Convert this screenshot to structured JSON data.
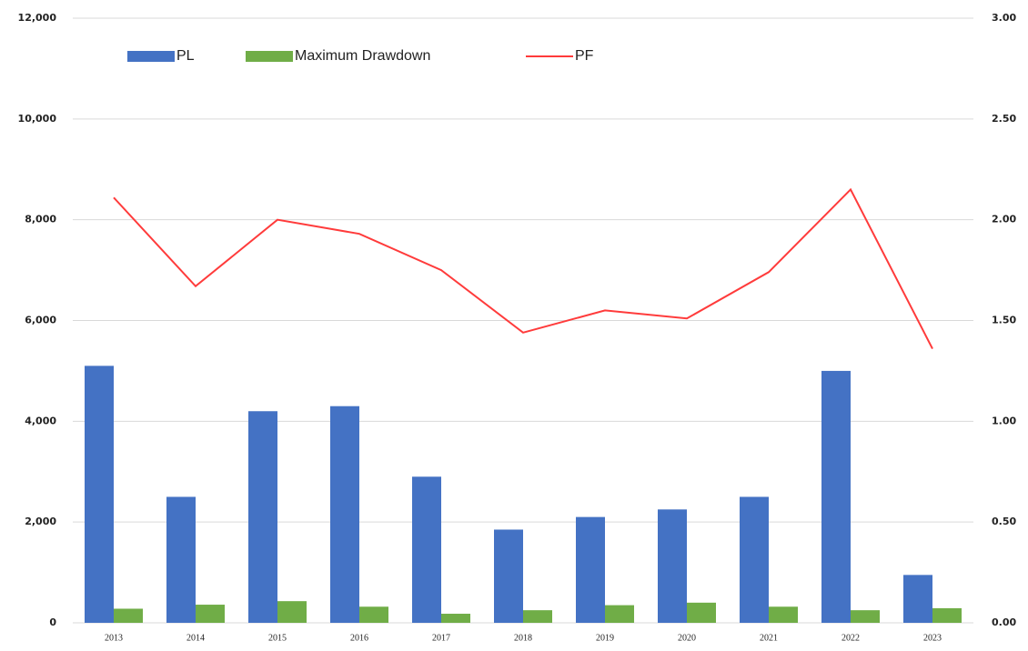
{
  "chart_data": {
    "type": "bar-line",
    "categories": [
      "2013",
      "2014",
      "2015",
      "2016",
      "2017",
      "2018",
      "2019",
      "2020",
      "2021",
      "2022",
      "2023"
    ],
    "series": [
      {
        "name": "PL",
        "type": "bar",
        "color": "#4472c4",
        "values": [
          5100,
          2500,
          4200,
          4300,
          2900,
          1850,
          2100,
          2250,
          2500,
          5000,
          950
        ]
      },
      {
        "name": "Maximum Drawdown",
        "type": "bar",
        "color": "#70ad47",
        "values": [
          280,
          360,
          430,
          320,
          180,
          250,
          350,
          400,
          320,
          250,
          290
        ]
      },
      {
        "name": "PF",
        "type": "line",
        "axis": "y2",
        "color": "#ff3b3b",
        "values": [
          2.11,
          1.67,
          2.0,
          1.93,
          1.75,
          1.44,
          1.55,
          1.51,
          1.74,
          2.15,
          1.36
        ]
      }
    ],
    "ylim": [
      0,
      12000
    ],
    "yticks": [
      0,
      {
        "value": 2000,
        "label": "2,000"
      },
      {
        "value": 4000,
        "label": "4,000"
      },
      {
        "value": 6000,
        "label": "6,000"
      },
      {
        "value": 8000,
        "label": "8,000"
      },
      {
        "value": 10000,
        "label": "10,000"
      },
      {
        "value": 12000,
        "label": "12,000"
      }
    ],
    "y2lim": [
      0,
      3
    ],
    "y2ticks": [
      {
        "value": 0,
        "label": "0.00"
      },
      {
        "value": 0.5,
        "label": "0.50"
      },
      {
        "value": 1,
        "label": "1.00"
      },
      {
        "value": 1.5,
        "label": "1.50"
      },
      {
        "value": 2,
        "label": "2.00"
      },
      {
        "value": 2.5,
        "label": "2.50"
      },
      {
        "value": 3,
        "label": "3.00"
      }
    ],
    "grid": true,
    "legend": "top"
  }
}
